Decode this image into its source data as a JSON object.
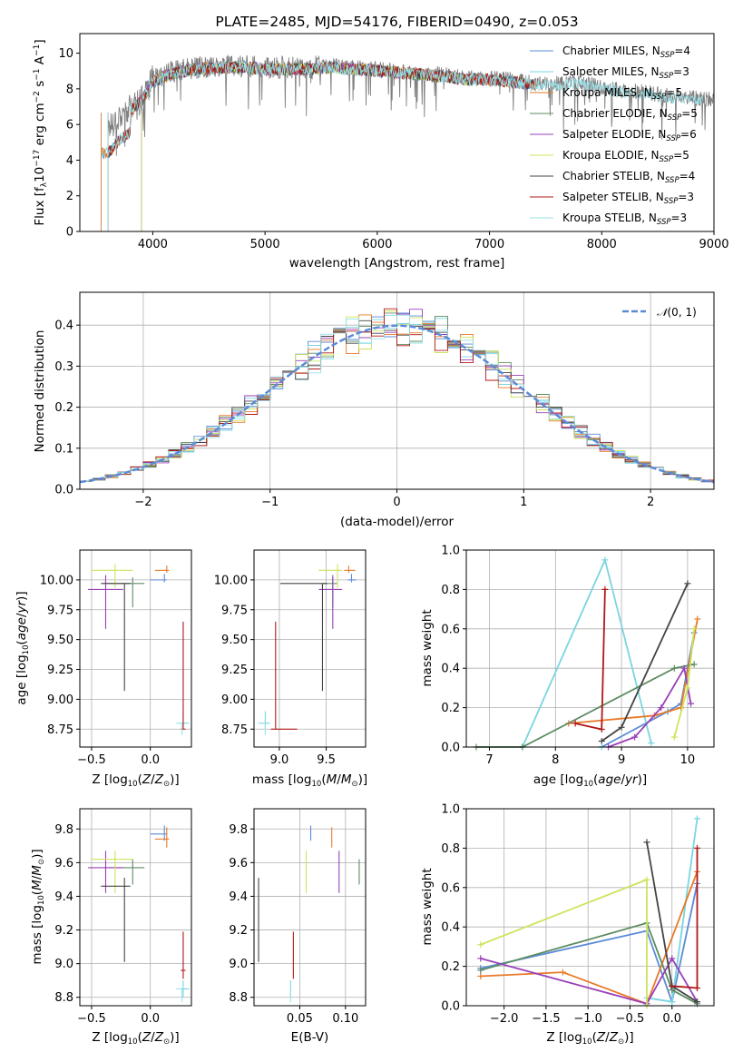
{
  "chart_data": [
    {
      "type": "line",
      "title": "PLATE=2485, MJD=54176, FIBERID=0490, z=0.053",
      "xlabel": "wavelength [Angstrom, rest frame]",
      "ylabel": "Flux [fλ10⁻¹⁷ erg cm⁻² s⁻¹ A⁻¹]",
      "ylabel_parts": {
        "a": "Flux [f",
        "b": "λ",
        "c": "10",
        "d": "−17",
        "e": " erg cm",
        "f": "−2",
        "g": " s",
        "h": "−1",
        "i": " A",
        "j": "−1",
        "k": "]"
      },
      "xlim": [
        3350,
        9000
      ],
      "ylim": [
        0,
        11.1
      ],
      "xticks": [
        4000,
        5000,
        6000,
        7000,
        8000,
        9000
      ],
      "yticks": [
        0,
        2,
        4,
        6,
        8,
        10
      ],
      "legend_position": "right",
      "data_series": {
        "name": "data",
        "color": "#808080",
        "x": [
          3600,
          3700,
          3800,
          3900,
          4000,
          4200,
          4400,
          4600,
          4800,
          5000,
          5200,
          5400,
          5600,
          5800,
          6000,
          6200,
          6400,
          6600,
          6800,
          7000,
          7200,
          7400,
          7600,
          7800,
          8000,
          8200,
          8400,
          8600,
          8800,
          9000
        ],
        "y": [
          5.8,
          6.5,
          6.9,
          7.4,
          8.6,
          9.0,
          9.2,
          9.3,
          9.3,
          9.2,
          9.2,
          9.2,
          9.3,
          9.2,
          9.1,
          9.0,
          8.9,
          8.8,
          8.6,
          8.6,
          8.5,
          8.3,
          8.3,
          8.4,
          8.1,
          7.9,
          7.8,
          7.6,
          7.5,
          7.4
        ]
      },
      "model_curve": {
        "x": [
          3600,
          3700,
          3800,
          3900,
          4000,
          4200,
          4400,
          4600,
          4800,
          5000,
          5200,
          5400,
          5600,
          5800,
          6000,
          6200,
          6400,
          6600,
          6800,
          7000,
          7200,
          7400,
          7600,
          7800,
          8000,
          8200,
          8400,
          8600,
          8800,
          9000
        ],
        "y": [
          5.6,
          6.3,
          6.8,
          7.3,
          8.4,
          8.9,
          9.1,
          9.2,
          9.2,
          9.1,
          9.1,
          9.1,
          9.2,
          9.1,
          9.0,
          8.9,
          8.8,
          8.7,
          8.5,
          8.5,
          8.4,
          8.2,
          8.2,
          8.3,
          8.0,
          7.8,
          7.7,
          7.5,
          7.4,
          7.3
        ]
      },
      "series": [
        {
          "name": "Chabrier MILES",
          "nssp": "4",
          "color": "#5b8ad8",
          "xmin": 3540,
          "xmax": 7420
        },
        {
          "name": "Salpeter MILES",
          "nssp": "3",
          "color": "#7ad5e0",
          "xmin": 3540,
          "xmax": 7420
        },
        {
          "name": "Kroupa MILES",
          "nssp": "5",
          "color": "#e87a28",
          "xmin": 3540,
          "xmax": 7420
        },
        {
          "name": "Chabrier ELODIE",
          "nssp": "5",
          "color": "#5e8c62",
          "xmin": 3900,
          "xmax": 6800
        },
        {
          "name": "Salpeter ELODIE",
          "nssp": "6",
          "color": "#9a40b8",
          "xmin": 3900,
          "xmax": 6800
        },
        {
          "name": "Kroupa ELODIE",
          "nssp": "5",
          "color": "#cce45c",
          "xmin": 3900,
          "xmax": 6800
        },
        {
          "name": "Chabrier STELIB",
          "nssp": "4",
          "color": "#444444",
          "xmin": 3600,
          "xmax": 7400
        },
        {
          "name": "Salpeter STELIB",
          "nssp": "3",
          "color": "#b01818",
          "xmin": 3600,
          "xmax": 7400
        },
        {
          "name": "Kroupa STELIB",
          "nssp": "3",
          "color": "#96e2ea",
          "xmin": 3600,
          "xmax": 8900
        }
      ]
    },
    {
      "type": "histogram",
      "xlabel": "(data-model)/error",
      "ylabel": "Normed distribution",
      "xlim": [
        -2.5,
        2.5
      ],
      "ylim": [
        0,
        0.48
      ],
      "xticks": [
        -2,
        -1,
        0,
        1,
        2
      ],
      "yticks": [
        0.0,
        0.1,
        0.2,
        0.3,
        0.4
      ],
      "grid": true,
      "legend_position": "top-right",
      "reference_curve": {
        "name": "𝒩(0, 1)",
        "label_a": "𝒩",
        "label_b": "(0, 1)",
        "color": "#5b8ad8",
        "style": "dashed"
      },
      "bin_width": 0.1
    },
    {
      "type": "scatter",
      "xlabel": "Z [log₁₀(Z/Z⊙)]",
      "ylabel": "age  [log₁₀(age/yr)]",
      "xlim": [
        -0.6,
        0.35
      ],
      "ylim": [
        8.6,
        10.25
      ],
      "xticks": [
        -0.5,
        0.0
      ],
      "yticks": [
        8.75,
        9.0,
        9.25,
        9.5,
        9.75,
        10.0
      ],
      "grid": true
    },
    {
      "type": "scatter",
      "xlabel": "mass [log₁₀(M/M⊙)]",
      "ylabel": "",
      "xlim": [
        8.73,
        9.92
      ],
      "ylim": [
        8.6,
        10.25
      ],
      "xticks": [
        9.0,
        9.5
      ],
      "yticks": [
        8.75,
        9.0,
        9.25,
        9.5,
        9.75,
        10.0
      ],
      "grid": true
    },
    {
      "type": "line",
      "xlabel": "age  [log₁₀(age/yr)]",
      "ylabel": "mass weight",
      "xlim": [
        6.65,
        10.4
      ],
      "ylim": [
        0.0,
        1.0
      ],
      "xticks": [
        7,
        8,
        9,
        10
      ],
      "yticks": [
        0.0,
        0.2,
        0.4,
        0.6,
        0.8,
        1.0
      ],
      "grid": true
    },
    {
      "type": "scatter",
      "xlabel": "Z [log₁₀(Z/Z⊙)]",
      "ylabel": "mass [log₁₀(M/M⊙)]",
      "xlim": [
        -0.6,
        0.35
      ],
      "ylim": [
        8.75,
        9.92
      ],
      "xticks": [
        -0.5,
        0.0
      ],
      "yticks": [
        8.8,
        9.0,
        9.2,
        9.4,
        9.6,
        9.8
      ],
      "grid": true
    },
    {
      "type": "scatter",
      "xlabel": "E(B-V)",
      "ylabel": "",
      "xlim": [
        0.0,
        0.122
      ],
      "ylim": [
        8.75,
        9.92
      ],
      "xticks": [
        0.05,
        0.1
      ],
      "yticks": [
        8.8,
        9.0,
        9.2,
        9.4,
        9.6,
        9.8
      ],
      "grid": true
    },
    {
      "type": "line",
      "xlabel": "Z [log₁₀(Z/Z⊙)]",
      "ylabel": "mass weight",
      "xlim": [
        -2.45,
        0.5
      ],
      "ylim": [
        0.0,
        1.0
      ],
      "xticks": [
        -2.0,
        -1.5,
        -1.0,
        -0.5,
        0.0
      ],
      "yticks": [
        0.0,
        0.2,
        0.4,
        0.6,
        0.8,
        1.0
      ],
      "grid": true
    }
  ],
  "models": [
    {
      "name": "Chabrier MILES",
      "color": "#5b8ad8",
      "age": 10.0,
      "age_err": [
        0.02,
        0.05
      ],
      "Z": 0.12,
      "Z_err": [
        0.12,
        0.02
      ],
      "mass": 9.77,
      "mass_err": [
        0.04,
        0.05
      ],
      "ebv": 0.062,
      "ebv_err": [
        0.06,
        0.05
      ],
      "age_pts": [
        [
          8.7,
          0.0
        ],
        [
          9.7,
          0.18
        ],
        [
          9.9,
          0.22
        ],
        [
          10.1,
          0.58
        ]
      ],
      "Z_pts": [
        [
          -2.28,
          0.19
        ],
        [
          -0.3,
          0.38
        ],
        [
          0.0,
          0.02
        ],
        [
          0.3,
          0.62
        ]
      ]
    },
    {
      "name": "Salpeter MILES",
      "color": "#7ad5e0",
      "age": 8.8,
      "age_err": [
        0.05,
        0.1
      ],
      "Z": 0.28,
      "Z_err": [
        0.02,
        0.05
      ],
      "mass": 8.85,
      "mass_err": [
        0.05,
        0.05
      ],
      "ebv": 0.04,
      "ebv_err": [
        0.04,
        0.04
      ],
      "age_pts": [
        [
          7.5,
          0.0
        ],
        [
          8.75,
          0.95
        ],
        [
          9.45,
          0.02
        ]
      ],
      "Z_pts": [
        [
          -0.3,
          0.04
        ],
        [
          0.0,
          0.02
        ],
        [
          0.3,
          0.95
        ]
      ]
    },
    {
      "name": "Kroupa MILES",
      "color": "#e87a28",
      "age": 10.08,
      "age_err": [
        0.02,
        0.04
      ],
      "Z": 0.14,
      "Z_err": [
        0.1,
        0.02
      ],
      "mass": 9.74,
      "mass_err": [
        0.05,
        0.07
      ],
      "ebv": 0.085,
      "ebv_err": [
        0.06,
        0.05
      ],
      "age_pts": [
        [
          8.2,
          0.12
        ],
        [
          9.5,
          0.16
        ],
        [
          9.9,
          0.2
        ],
        [
          10.15,
          0.65
        ]
      ],
      "Z_pts": [
        [
          -2.28,
          0.15
        ],
        [
          -1.3,
          0.17
        ],
        [
          -0.3,
          0.01
        ],
        [
          0.3,
          0.68
        ]
      ]
    },
    {
      "name": "Chabrier ELODIE",
      "color": "#5e8c62",
      "age": 9.97,
      "age_err": [
        0.2,
        0.05
      ],
      "Z": -0.15,
      "Z_err": [
        0.25,
        0.1
      ],
      "mass": 9.57,
      "mass_err": [
        0.1,
        0.05
      ],
      "ebv": 0.115,
      "ebv_err": [
        0.05,
        0.04
      ],
      "age_pts": [
        [
          6.8,
          0.0
        ],
        [
          7.5,
          0.0
        ],
        [
          9.8,
          0.4
        ],
        [
          10.1,
          0.42
        ]
      ],
      "Z_pts": [
        [
          -2.28,
          0.18
        ],
        [
          -0.3,
          0.42
        ],
        [
          0.0,
          0.08
        ],
        [
          0.3,
          0.01
        ]
      ]
    },
    {
      "name": "Salpeter ELODIE",
      "color": "#9a40b8",
      "age": 9.92,
      "age_err": [
        0.33,
        0.12
      ],
      "Z": -0.38,
      "Z_err": [
        0.15,
        0.15
      ],
      "mass": 9.57,
      "mass_err": [
        0.15,
        0.1
      ],
      "ebv": 0.093,
      "ebv_err": [
        0.06,
        0.05
      ],
      "age_pts": [
        [
          8.8,
          0.0
        ],
        [
          9.2,
          0.05
        ],
        [
          9.6,
          0.2
        ],
        [
          9.95,
          0.4
        ],
        [
          10.05,
          0.22
        ]
      ],
      "Z_pts": [
        [
          -2.28,
          0.24
        ],
        [
          -0.3,
          0.01
        ],
        [
          0.0,
          0.24
        ],
        [
          0.3,
          0.02
        ]
      ]
    },
    {
      "name": "Kroupa ELODIE",
      "color": "#cce45c",
      "age": 10.08,
      "age_err": [
        0.15,
        0.05
      ],
      "Z": -0.3,
      "Z_err": [
        0.2,
        0.15
      ],
      "mass": 9.62,
      "mass_err": [
        0.2,
        0.05
      ],
      "ebv": 0.057,
      "ebv_err": [
        0.03,
        0.05
      ],
      "age_pts": [
        [
          9.8,
          0.05
        ],
        [
          10.0,
          0.3
        ],
        [
          10.1,
          0.6
        ]
      ],
      "Z_pts": [
        [
          -2.28,
          0.31
        ],
        [
          -0.3,
          0.64
        ],
        [
          -0.3,
          0.0
        ]
      ]
    },
    {
      "name": "Chabrier STELIB",
      "color": "#444444",
      "age": 9.97,
      "age_err": [
        0.9,
        0.0
      ],
      "Z": -0.22,
      "Z_err": [
        0.2,
        0.05
      ],
      "mass": 9.46,
      "mass_err": [
        0.45,
        0.05
      ],
      "ebv": 0.005,
      "ebv_err": [
        0.08,
        0.05
      ],
      "age_pts": [
        [
          8.7,
          0.03
        ],
        [
          9.0,
          0.1
        ],
        [
          10.0,
          0.83
        ]
      ],
      "Z_pts": [
        [
          -0.3,
          0.83
        ],
        [
          0.0,
          0.1
        ],
        [
          0.3,
          0.02
        ]
      ]
    },
    {
      "name": "Salpeter STELIB",
      "color": "#b01818",
      "age": 8.75,
      "age_err": [
        0.0,
        0.9
      ],
      "Z": 0.28,
      "Z_err": [
        0.02,
        0.02
      ],
      "mass": 8.96,
      "mass_err": [
        0.05,
        0.23
      ],
      "ebv": 0.043,
      "ebv_err": [
        0.03,
        0.02
      ],
      "age_pts": [
        [
          8.3,
          0.12
        ],
        [
          8.7,
          0.09
        ],
        [
          8.75,
          0.8
        ]
      ],
      "Z_pts": [
        [
          0.0,
          0.1
        ],
        [
          0.3,
          0.09
        ],
        [
          0.3,
          0.8
        ]
      ]
    },
    {
      "name": "Kroupa STELIB",
      "color": "#96e2ea",
      "age": 8.8,
      "age_err": [
        0.1,
        0.0
      ],
      "Z": 0.27,
      "Z_err": [
        0.05,
        0.0
      ],
      "mass": 8.85,
      "mass_err": [
        0.08,
        0.0
      ],
      "ebv": 0.04,
      "ebv_err": [
        0.04,
        0.0
      ],
      "age_pts": [
        [
          8.7,
          0.0
        ]
      ],
      "Z_pts": [
        [
          0.0,
          0.0
        ]
      ]
    }
  ]
}
